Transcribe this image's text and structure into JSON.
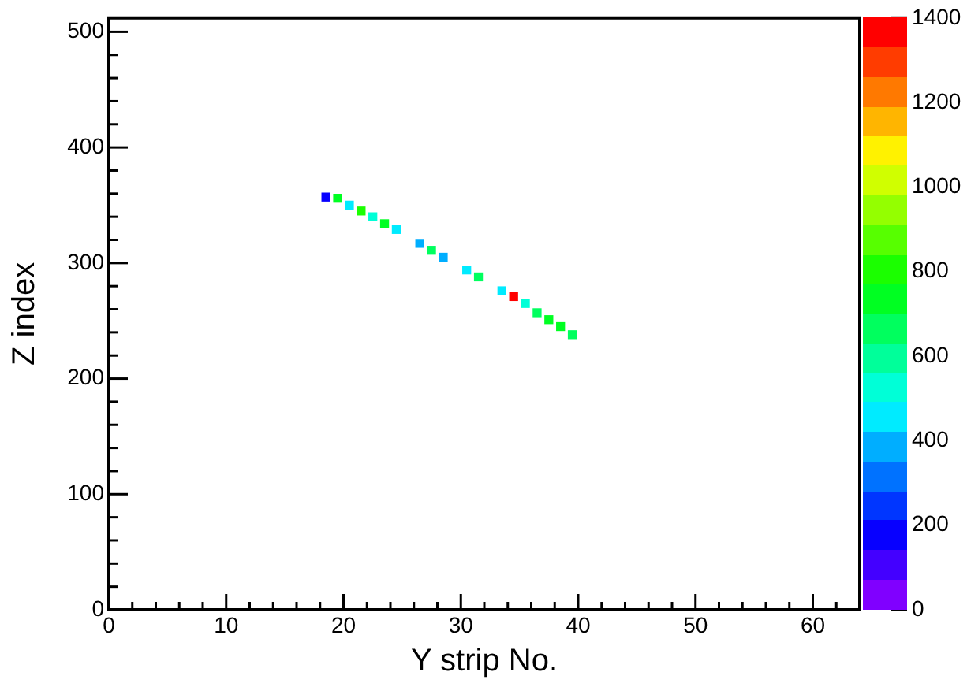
{
  "chart_data": {
    "type": "scatter",
    "xlabel": "Y strip No.",
    "ylabel": "Z index",
    "x": [
      18.5,
      19.5,
      20.5,
      21.5,
      22.5,
      23.5,
      24.5,
      26.5,
      27.5,
      28.5,
      30.5,
      31.5,
      33.5,
      34.5,
      35.5,
      36.5,
      37.5,
      38.5,
      39.5
    ],
    "values": [
      357,
      356,
      350,
      345,
      340,
      334,
      329,
      317,
      311,
      305,
      294,
      288,
      276,
      271,
      265,
      257,
      251,
      245,
      238
    ],
    "cvalues": [
      150,
      700,
      450,
      800,
      550,
      750,
      450,
      400,
      650,
      350,
      450,
      650,
      450,
      1400,
      550,
      650,
      700,
      750,
      650
    ],
    "clim": [
      0,
      1400
    ],
    "cticks": [
      0,
      200,
      400,
      600,
      800,
      1000,
      1200,
      1400
    ],
    "xlim": [
      0,
      64
    ],
    "xticks": [
      0,
      10,
      20,
      30,
      40,
      50,
      60
    ],
    "ylim": [
      0,
      512
    ],
    "yticks": [
      0,
      100,
      200,
      300,
      400,
      500
    ],
    "marker": "square",
    "grid": false,
    "legend": false
  }
}
